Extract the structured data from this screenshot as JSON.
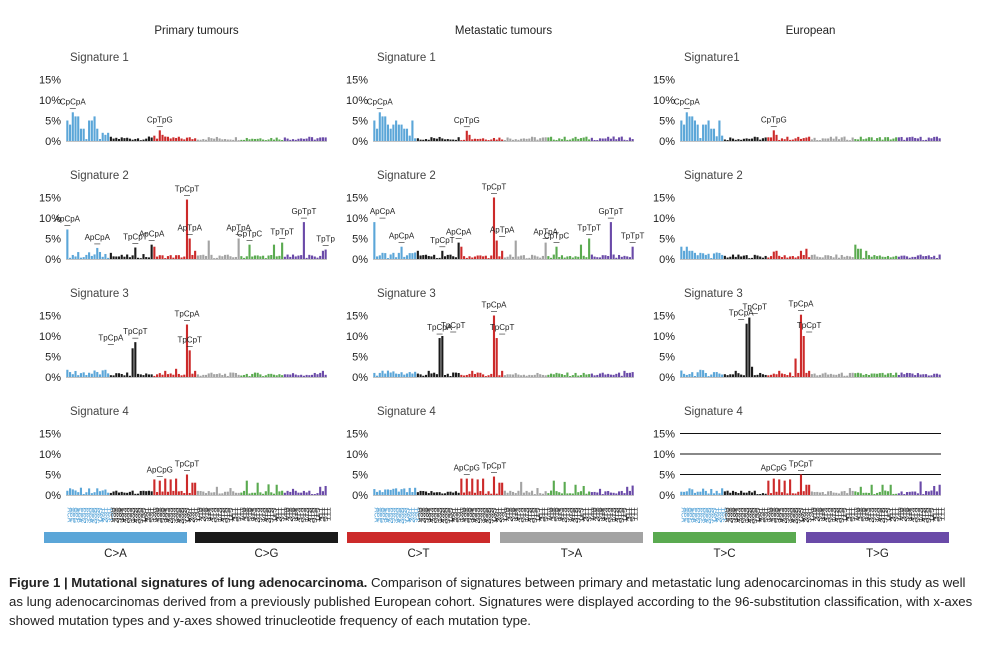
{
  "chart_data": {
    "type": "bar",
    "columns": [
      "Primary tumours",
      "Metastatic tumours",
      "European"
    ],
    "ytick_labels": [
      "15%",
      "10%",
      "5%",
      "0%"
    ],
    "ylim": [
      0,
      15
    ],
    "contexts": [
      "ACA",
      "ACC",
      "ACG",
      "ACT",
      "CCA",
      "CCC",
      "CCG",
      "CCT",
      "GCA",
      "GCC",
      "GCG",
      "GCT",
      "TCA",
      "TCC",
      "TCG",
      "TCT"
    ],
    "contexts_TA": [
      "ATA",
      "ATC",
      "ATG",
      "ATT",
      "CTA",
      "CTC",
      "CTG",
      "CTT",
      "GTA",
      "GTC",
      "GTG",
      "GTT",
      "TTA",
      "TTC",
      "TTG",
      "TTT"
    ],
    "groups": [
      {
        "label": "C>A",
        "color": "#5ba6d8"
      },
      {
        "label": "C>G",
        "color": "#1a1a1a"
      },
      {
        "label": "C>T",
        "color": "#cc2a2a"
      },
      {
        "label": "T>A",
        "color": "#a3a3a3"
      },
      {
        "label": "T>C",
        "color": "#5aaa50"
      },
      {
        "label": "T>G",
        "color": "#6a4aa8"
      }
    ],
    "signatures": [
      {
        "panels": [
          {
            "name": "Signature 1",
            "peaks": {
              "0": 5,
              "1": 4,
              "2": 7,
              "3": 6,
              "4": 6,
              "5": 3,
              "6": 3,
              "8": 5,
              "9": 5,
              "10": 6,
              "11": 3,
              "13": 2,
              "15": 2,
              "34": 2.6,
              "35": 1.5,
              "32": 1.3
            },
            "annotations": [
              {
                "text": "CpCpA",
                "bin": 2,
                "value": 7
              },
              {
                "text": "CpTpG",
                "bin": 34,
                "value": 2.6
              }
            ]
          },
          {
            "name": "Signature 1",
            "peaks": {
              "0": 5,
              "1": 3,
              "2": 7,
              "3": 6,
              "4": 6,
              "5": 4,
              "6": 3,
              "7": 4,
              "8": 5,
              "9": 4,
              "10": 4,
              "11": 3,
              "12": 3,
              "14": 5,
              "34": 2.5,
              "35": 1.5
            },
            "annotations": [
              {
                "text": "CpCpA",
                "bin": 2,
                "value": 7
              },
              {
                "text": "CpTpG",
                "bin": 34,
                "value": 2.5
              }
            ]
          },
          {
            "name": "Signature1",
            "peaks": {
              "0": 5,
              "1": 4,
              "2": 7,
              "3": 6,
              "4": 6,
              "5": 5,
              "6": 4,
              "8": 4,
              "9": 4,
              "10": 5,
              "11": 3,
              "12": 3,
              "14": 5,
              "34": 2.6,
              "35": 1.5
            },
            "annotations": [
              {
                "text": "CpCpA",
                "bin": 2,
                "value": 7
              },
              {
                "text": "CpTpG",
                "bin": 34,
                "value": 2.6
              }
            ]
          }
        ]
      },
      {
        "panels": [
          {
            "name": "Signature 2",
            "peaks": {
              "0": 7.2,
              "11": 2.7,
              "16": 1.5,
              "25": 2.8,
              "28": 1.2,
              "31": 3.5,
              "32": 3,
              "44": 14.5,
              "45": 5,
              "47": 2,
              "52": 4.5,
              "63": 5,
              "67": 3.5,
              "76": 3.5,
              "79": 4,
              "87": 9,
              "94": 2,
              "95": 2.3
            },
            "annotations": [
              {
                "text": "ApCpA",
                "bin": 0,
                "value": 7.2
              },
              {
                "text": "ApCpA",
                "bin": 11,
                "value": 2.7
              },
              {
                "text": "TpCpT",
                "bin": 25,
                "value": 2.8
              },
              {
                "text": "ApCpA",
                "bin": 31,
                "value": 3.5
              },
              {
                "text": "TpCpT",
                "bin": 44,
                "value": 14.5
              },
              {
                "text": "ApTpA",
                "bin": 45,
                "value": 5
              },
              {
                "text": "ApTpA",
                "bin": 63,
                "value": 5
              },
              {
                "text": "CpTpC",
                "bin": 67,
                "value": 3.5
              },
              {
                "text": "TpTpT",
                "bin": 79,
                "value": 4
              },
              {
                "text": "GpTpT",
                "bin": 87,
                "value": 9
              },
              {
                "text": "TpTp",
                "bin": 95,
                "value": 2.3
              }
            ]
          },
          {
            "name": "Signature 2",
            "peaks": {
              "0": 9,
              "10": 3,
              "16": 2,
              "25": 2,
              "31": 4,
              "32": 3,
              "44": 15,
              "45": 4.5,
              "47": 2,
              "52": 4.5,
              "63": 4,
              "67": 3,
              "76": 3.5,
              "79": 5,
              "87": 9,
              "95": 3
            },
            "annotations": [
              {
                "text": "ApCpA",
                "bin": 3,
                "value": 9
              },
              {
                "text": "ApCpA",
                "bin": 10,
                "value": 3
              },
              {
                "text": "TpCpT",
                "bin": 25,
                "value": 2
              },
              {
                "text": "ApCpA",
                "bin": 31,
                "value": 4
              },
              {
                "text": "TpCpT",
                "bin": 44,
                "value": 15
              },
              {
                "text": "ApTpA",
                "bin": 47,
                "value": 4.5
              },
              {
                "text": "ApTpA",
                "bin": 63,
                "value": 4
              },
              {
                "text": "CpTpC",
                "bin": 67,
                "value": 3
              },
              {
                "text": "TpTpT",
                "bin": 79,
                "value": 5
              },
              {
                "text": "GpTpT",
                "bin": 87,
                "value": 9
              },
              {
                "text": "TpTpT",
                "bin": 95,
                "value": 3
              }
            ]
          },
          {
            "name": "Signature 2",
            "peaks": {
              "0": 3,
              "1": 2,
              "2": 3,
              "3": 2,
              "4": 2,
              "5": 1.5,
              "7": 1.5,
              "34": 1.8,
              "35": 2,
              "44": 2,
              "46": 2.5,
              "64": 3.5,
              "65": 2.5,
              "66": 2.5,
              "68": 2
            },
            "annotations": []
          }
        ]
      },
      {
        "panels": [
          {
            "name": "Signature 3",
            "peaks": {
              "24": 7,
              "25": 8.5,
              "44": 12.8,
              "45": 6.5,
              "40": 2,
              "36": 1.5,
              "47": 1.5,
              "94": 1.5,
              "93": 1
            },
            "annotations": [
              {
                "text": "TpCpA",
                "bin": 16,
                "value": 7
              },
              {
                "text": "TpCpT",
                "bin": 25,
                "value": 8.5
              },
              {
                "text": "TpCpA",
                "bin": 44,
                "value": 12.8
              },
              {
                "text": "TpCpT",
                "bin": 45,
                "value": 6.5
              }
            ]
          },
          {
            "name": "Signature 3",
            "peaks": {
              "24": 9.5,
              "25": 10,
              "44": 15,
              "45": 9.5,
              "20": 1.5,
              "36": 1.5,
              "47": 1.5,
              "92": 1.5,
              "95": 1.2
            },
            "annotations": [
              {
                "text": "TpCpA",
                "bin": 24,
                "value": 9.5
              },
              {
                "text": "TpCpT",
                "bin": 29,
                "value": 10
              },
              {
                "text": "TpCpA",
                "bin": 44,
                "value": 15
              },
              {
                "text": "TpCpT",
                "bin": 47,
                "value": 9.5
              }
            ]
          },
          {
            "name": "Signature 3",
            "peaks": {
              "24": 13,
              "25": 14.5,
              "44": 15.2,
              "45": 10,
              "42": 4.5,
              "26": 2.5,
              "20": 1.5,
              "36": 1.5,
              "47": 1.5
            },
            "annotations": [
              {
                "text": "TpCpA",
                "bin": 22,
                "value": 13
              },
              {
                "text": "TpCpT",
                "bin": 27,
                "value": 14.5
              },
              {
                "text": "TpCpA",
                "bin": 44,
                "value": 15.2
              },
              {
                "text": "TpCpT",
                "bin": 47,
                "value": 10
              }
            ]
          }
        ]
      },
      {
        "panels": [
          {
            "name": "Signature 4",
            "peaks": {
              "34": 3.5,
              "32": 3.8,
              "36": 4,
              "38": 3.8,
              "40": 4,
              "44": 5,
              "46": 3,
              "47": 3,
              "55": 2,
              "60": 1.7,
              "66": 3.5,
              "70": 3,
              "74": 2.6,
              "77": 2.5,
              "83": 1.5,
              "93": 2,
              "95": 2.2
            },
            "annotations": [
              {
                "text": "ApCpG",
                "bin": 34,
                "value": 3.5
              },
              {
                "text": "TpCpT",
                "bin": 44,
                "value": 5
              }
            ]
          },
          {
            "name": "Signature 4",
            "peaks": {
              "34": 4,
              "32": 4,
              "36": 4,
              "38": 3.8,
              "40": 4,
              "44": 4.5,
              "46": 3,
              "47": 3,
              "54": 3.2,
              "60": 1.7,
              "66": 3.5,
              "70": 3.2,
              "74": 2.5,
              "77": 2.2,
              "83": 1.5,
              "93": 2,
              "95": 2.3
            },
            "annotations": [
              {
                "text": "ApCpG",
                "bin": 34,
                "value": 4
              },
              {
                "text": "TpCpT",
                "bin": 44,
                "value": 4.5
              }
            ]
          },
          {
            "name": "Signature 4",
            "peaks": {
              "34": 4,
              "32": 3.5,
              "36": 3.8,
              "38": 3.5,
              "40": 3.8,
              "44": 5,
              "46": 2.5,
              "47": 2.5,
              "62": 1.7,
              "66": 2,
              "70": 2.5,
              "74": 2.5,
              "77": 2.5,
              "88": 3.3,
              "93": 2.2,
              "95": 2.5
            },
            "annotations": [
              {
                "text": "ApCpG",
                "bin": 34,
                "value": 4
              },
              {
                "text": "TpCpT",
                "bin": 44,
                "value": 5
              }
            ]
          }
        ]
      }
    ],
    "xlabel": "",
    "ylabel": ""
  },
  "caption": {
    "title": "Figure 1 | Mutational signatures of lung adenocarcinoma.",
    "body": " Comparison of signatures between primary and metastatic lung adenocarcinomas in this study as well as lung adenocarcinomas derived from a previously published European cohort. Signatures were displayed according to the 96-substitution classification, with x-axes showed mutation types and y-axes showed trinucleotide frequency of each mutation type."
  }
}
